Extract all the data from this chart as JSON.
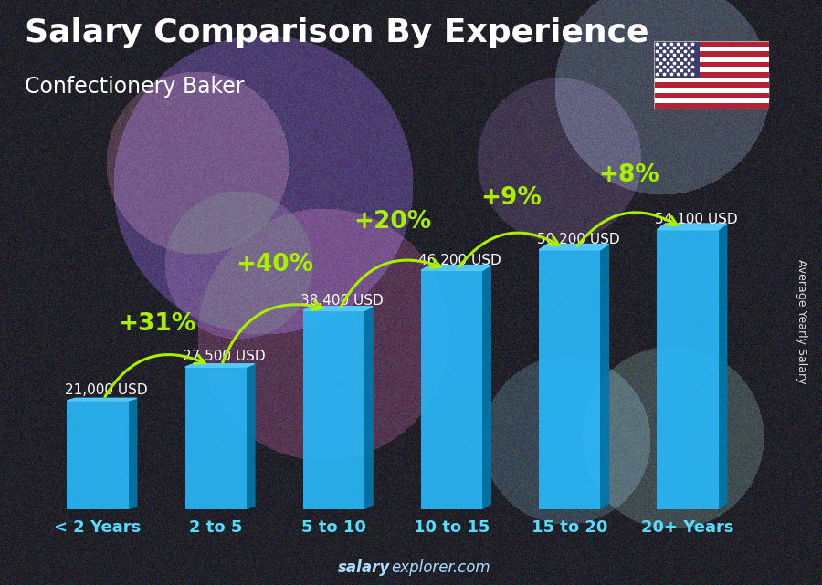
{
  "title": "Salary Comparison By Experience",
  "subtitle": "Confectionery Baker",
  "categories": [
    "< 2 Years",
    "2 to 5",
    "5 to 10",
    "10 to 15",
    "15 to 20",
    "20+ Years"
  ],
  "values": [
    21000,
    27500,
    38400,
    46200,
    50200,
    54100
  ],
  "labels": [
    "21,000 USD",
    "27,500 USD",
    "38,400 USD",
    "46,200 USD",
    "50,200 USD",
    "54,100 USD"
  ],
  "pct_labels": [
    "+31%",
    "+40%",
    "+20%",
    "+9%",
    "+8%"
  ],
  "bar_color_face": "#29b6f6",
  "bar_color_dark": "#0077aa",
  "bar_color_top": "#55ccff",
  "bg_color": "#1a2030",
  "title_color": "#ffffff",
  "label_color": "#ffffff",
  "pct_color": "#aaee00",
  "xtick_color": "#55ddff",
  "ylabel_text": "Average Yearly Salary",
  "footer_bold": "salary",
  "footer_normal": "explorer.com",
  "footer_color": "#aaddff",
  "ylim": [
    0,
    68000
  ],
  "title_fontsize": 26,
  "subtitle_fontsize": 17,
  "label_fontsize": 11,
  "pct_fontsize": 19,
  "xlabel_fontsize": 13,
  "footer_fontsize": 12
}
